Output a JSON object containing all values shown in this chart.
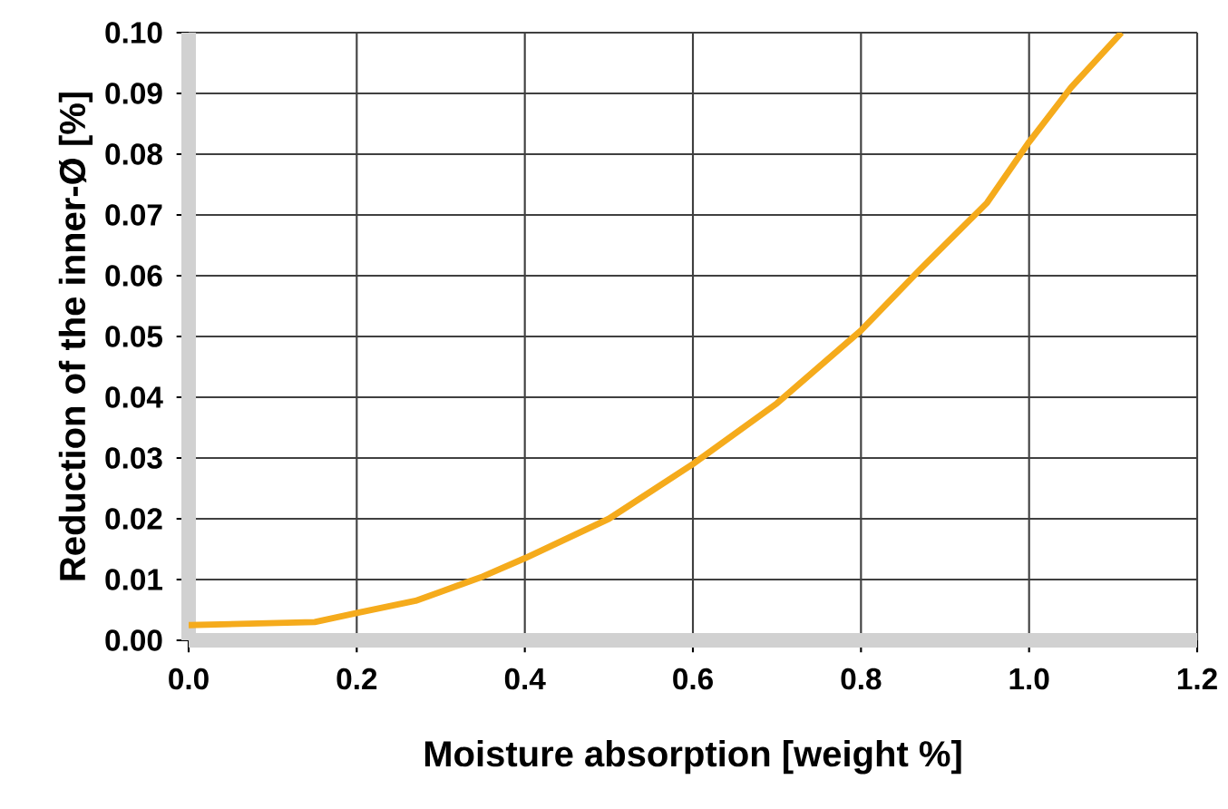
{
  "chart_data": {
    "type": "line",
    "xlabel": "Moisture absorption [weight %]",
    "ylabel": "Reduction of the inner-Ø [%]",
    "x": [
      0,
      0.15,
      0.2,
      0.27,
      0.3,
      0.35,
      0.4,
      0.5,
      0.6,
      0.7,
      0.8,
      0.87,
      0.95,
      1.0,
      1.05,
      1.11
    ],
    "values": [
      0.0025,
      0.003,
      0.0045,
      0.0065,
      0.008,
      0.0105,
      0.0135,
      0.02,
      0.029,
      0.039,
      0.051,
      0.061,
      0.072,
      0.082,
      0.091,
      0.1
    ],
    "color": "#f5ab1c",
    "xlim": [
      0,
      1.2
    ],
    "ylim": [
      0,
      0.1
    ],
    "xticks": [
      {
        "value": 0,
        "label": "0.0"
      },
      {
        "value": 0.2,
        "label": "0.2"
      },
      {
        "value": 0.4,
        "label": "0.4"
      },
      {
        "value": 0.6,
        "label": "0.6"
      },
      {
        "value": 0.8,
        "label": "0.8"
      },
      {
        "value": 1,
        "label": "1.0"
      },
      {
        "value": 1.2,
        "label": "1.2"
      }
    ],
    "yticks": [
      {
        "value": 0,
        "label": "0.00"
      },
      {
        "value": 0.01,
        "label": "0.01"
      },
      {
        "value": 0.02,
        "label": "0.02"
      },
      {
        "value": 0.03,
        "label": "0.03"
      },
      {
        "value": 0.04,
        "label": "0.04"
      },
      {
        "value": 0.05,
        "label": "0.05"
      },
      {
        "value": 0.06,
        "label": "0.06"
      },
      {
        "value": 0.07,
        "label": "0.07"
      },
      {
        "value": 0.08,
        "label": "0.08"
      },
      {
        "value": 0.09,
        "label": "0.09"
      },
      {
        "value": 0.1,
        "label": "0.10"
      }
    ],
    "grid": true
  }
}
